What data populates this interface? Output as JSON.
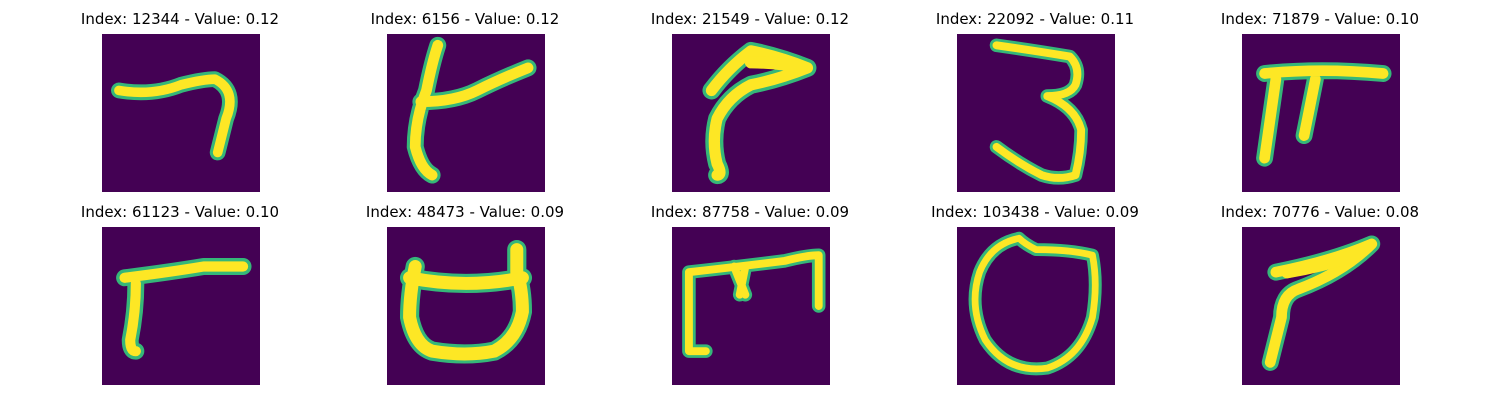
{
  "chart_data": {
    "type": "image_grid",
    "colormap": "viridis",
    "background_color": "#440154",
    "stroke_color": "#fde725",
    "edge_color": "#35b779",
    "panels": [
      {
        "title": "Index: 12344 - Value: 0.12",
        "index": 12344,
        "value": 0.12,
        "glyph": "stroke-7"
      },
      {
        "title": "Index: 6156 - Value: 0.12",
        "index": 6156,
        "value": 0.12,
        "glyph": "stroke-t"
      },
      {
        "title": "Index: 21549 - Value: 0.12",
        "index": 21549,
        "value": 0.12,
        "glyph": "stroke-hook"
      },
      {
        "title": "Index: 22092 - Value: 0.11",
        "index": 22092,
        "value": 0.11,
        "glyph": "stroke-3"
      },
      {
        "title": "Index: 71879 - Value: 0.10",
        "index": 71879,
        "value": 0.1,
        "glyph": "stroke-pi"
      },
      {
        "title": "Index: 61123 - Value: 0.10",
        "index": 61123,
        "value": 0.1,
        "glyph": "stroke-r"
      },
      {
        "title": "Index: 48473 - Value: 0.09",
        "index": 48473,
        "value": 0.09,
        "glyph": "stroke-cup"
      },
      {
        "title": "Index: 87758 - Value: 0.09",
        "index": 87758,
        "value": 0.09,
        "glyph": "stroke-m"
      },
      {
        "title": "Index: 103438 - Value: 0.09",
        "index": 103438,
        "value": 0.09,
        "glyph": "stroke-o"
      },
      {
        "title": "Index: 70776 - Value: 0.08",
        "index": 70776,
        "value": 0.08,
        "glyph": "stroke-7b"
      }
    ]
  }
}
